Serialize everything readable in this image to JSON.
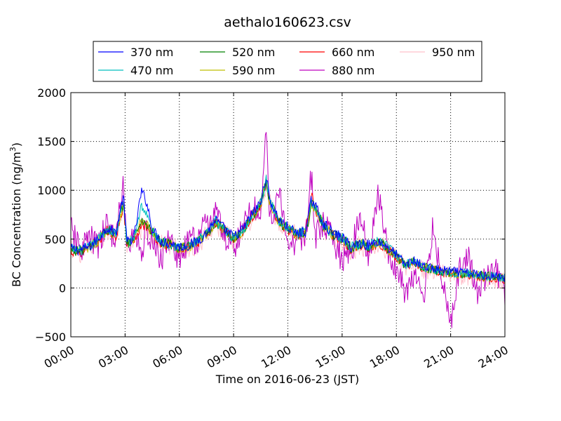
{
  "chart_data": {
    "type": "line",
    "title": "aethalo160623.csv",
    "xlabel": "Time on 2016-06-23 (JST)",
    "ylabel_main": "BC Concentration (ng/m",
    "ylabel_sup": "3",
    "ylabel_close": ")",
    "xlim": [
      0,
      24
    ],
    "ylim": [
      -500,
      2000
    ],
    "grid": true,
    "legend_position": "top",
    "x_ticks": [
      {
        "value": 0,
        "label": "00:00"
      },
      {
        "value": 3,
        "label": "03:00"
      },
      {
        "value": 6,
        "label": "06:00"
      },
      {
        "value": 9,
        "label": "09:00"
      },
      {
        "value": 12,
        "label": "12:00"
      },
      {
        "value": 15,
        "label": "15:00"
      },
      {
        "value": 18,
        "label": "18:00"
      },
      {
        "value": 21,
        "label": "21:00"
      },
      {
        "value": 24,
        "label": "24:00"
      }
    ],
    "y_ticks": [
      {
        "value": -500,
        "label": "−500"
      },
      {
        "value": 0,
        "label": "0"
      },
      {
        "value": 500,
        "label": "500"
      },
      {
        "value": 1000,
        "label": "1000"
      },
      {
        "value": 1500,
        "label": "1500"
      },
      {
        "value": 2000,
        "label": "2000"
      }
    ],
    "x": [
      0,
      0.5,
      1,
      1.5,
      2,
      2.5,
      2.9,
      3.1,
      3.5,
      3.9,
      4.2,
      4.5,
      5,
      5.5,
      6,
      6.5,
      7,
      7.5,
      8,
      8.5,
      9,
      9.5,
      10,
      10.5,
      10.8,
      11,
      11.5,
      12,
      12.5,
      13,
      13.3,
      13.5,
      14,
      14.5,
      15,
      15.5,
      16,
      16.5,
      17,
      17.5,
      18,
      18.5,
      19,
      19.5,
      20,
      20.5,
      21,
      21.5,
      22,
      22.5,
      23,
      23.5,
      24
    ],
    "series": [
      {
        "name": "370 nm",
        "color": "#0000ff",
        "values": [
          400,
          390,
          420,
          500,
          620,
          560,
          950,
          470,
          520,
          990,
          880,
          600,
          480,
          460,
          420,
          430,
          480,
          560,
          700,
          600,
          520,
          600,
          750,
          880,
          1150,
          900,
          700,
          620,
          560,
          580,
          900,
          850,
          650,
          560,
          520,
          420,
          460,
          440,
          480,
          420,
          340,
          240,
          280,
          220,
          200,
          180,
          170,
          160,
          150,
          140,
          130,
          120,
          110
        ]
      },
      {
        "name": "470 nm",
        "color": "#00bfbf",
        "values": [
          395,
          385,
          415,
          495,
          610,
          550,
          900,
          460,
          510,
          850,
          750,
          580,
          470,
          455,
          415,
          425,
          475,
          555,
          690,
          595,
          515,
          595,
          740,
          870,
          1120,
          890,
          690,
          615,
          555,
          575,
          880,
          840,
          640,
          555,
          515,
          415,
          455,
          435,
          475,
          415,
          335,
          235,
          275,
          215,
          195,
          175,
          165,
          155,
          145,
          135,
          125,
          115,
          105
        ]
      },
      {
        "name": "520 nm",
        "color": "#008000",
        "values": [
          390,
          380,
          410,
          490,
          600,
          545,
          880,
          455,
          505,
          700,
          650,
          570,
          465,
          450,
          410,
          420,
          470,
          550,
          680,
          590,
          510,
          590,
          730,
          860,
          1100,
          880,
          680,
          610,
          550,
          570,
          860,
          830,
          630,
          550,
          510,
          410,
          450,
          430,
          470,
          410,
          330,
          230,
          270,
          210,
          190,
          170,
          160,
          150,
          140,
          130,
          120,
          110,
          100
        ]
      },
      {
        "name": "590 nm",
        "color": "#bfbf00",
        "values": [
          385,
          375,
          405,
          485,
          595,
          540,
          870,
          450,
          500,
          680,
          640,
          565,
          460,
          445,
          405,
          415,
          465,
          545,
          675,
          585,
          505,
          585,
          725,
          855,
          1090,
          875,
          675,
          605,
          545,
          565,
          850,
          825,
          625,
          545,
          505,
          405,
          445,
          425,
          465,
          405,
          325,
          225,
          265,
          205,
          185,
          165,
          155,
          145,
          135,
          125,
          115,
          105,
          95
        ]
      },
      {
        "name": "660 nm",
        "color": "#ff0000",
        "values": [
          380,
          370,
          400,
          480,
          590,
          535,
          850,
          445,
          495,
          660,
          630,
          560,
          455,
          440,
          400,
          410,
          460,
          540,
          670,
          580,
          500,
          580,
          720,
          850,
          1080,
          870,
          670,
          600,
          540,
          560,
          1000,
          820,
          620,
          540,
          500,
          400,
          440,
          420,
          460,
          400,
          320,
          220,
          260,
          200,
          180,
          160,
          150,
          140,
          130,
          120,
          110,
          100,
          90
        ]
      },
      {
        "name": "880 nm",
        "color": "#bf00bf",
        "values": [
          600,
          380,
          520,
          420,
          650,
          500,
          1080,
          380,
          560,
          380,
          600,
          420,
          300,
          540,
          250,
          480,
          500,
          640,
          800,
          520,
          420,
          600,
          880,
          700,
          1700,
          650,
          980,
          400,
          500,
          560,
          1170,
          520,
          640,
          480,
          300,
          380,
          720,
          320,
          1000,
          380,
          200,
          -50,
          100,
          -100,
          600,
          140,
          -350,
          200,
          300,
          -100,
          150,
          200,
          -100
        ]
      },
      {
        "name": "950 nm",
        "color": "#ffc0cb",
        "values": [
          420,
          360,
          430,
          470,
          580,
          520,
          830,
          430,
          480,
          620,
          600,
          550,
          440,
          430,
          390,
          400,
          450,
          530,
          660,
          570,
          490,
          570,
          700,
          840,
          1060,
          860,
          660,
          590,
          530,
          550,
          960,
          810,
          610,
          530,
          490,
          390,
          430,
          410,
          450,
          390,
          310,
          210,
          250,
          190,
          170,
          150,
          140,
          130,
          120,
          110,
          100,
          90,
          80
        ]
      }
    ]
  }
}
